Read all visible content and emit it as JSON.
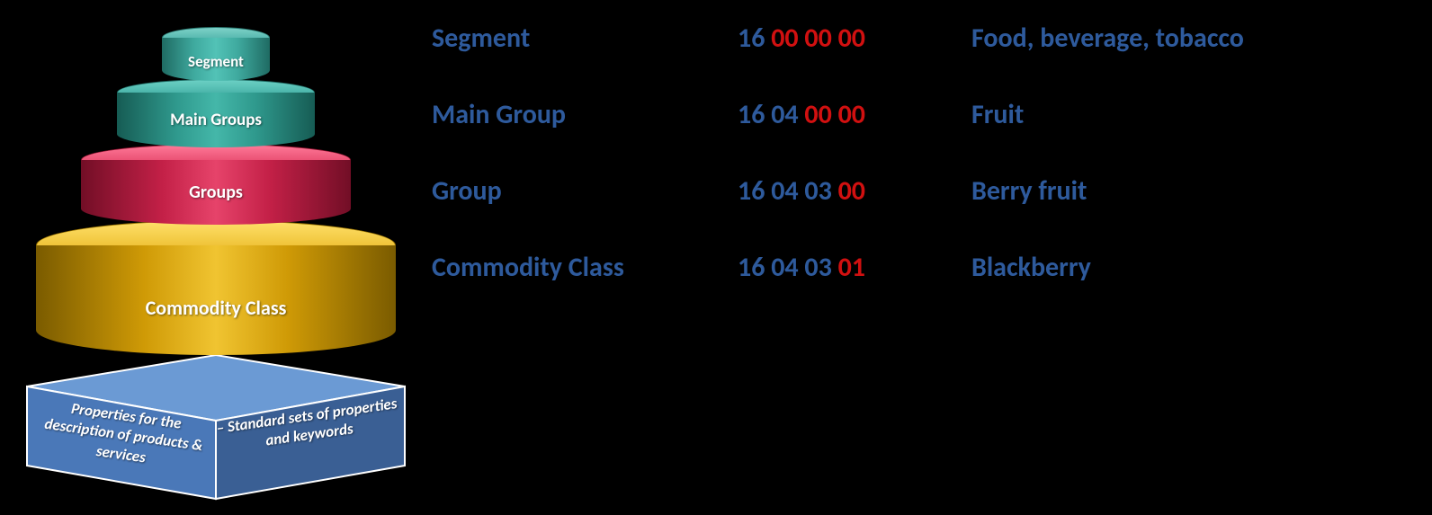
{
  "diagram": {
    "layers": [
      {
        "label": "Segment",
        "color_top": "#52c2b6",
        "color_side": "#2f998d"
      },
      {
        "label": "Main Groups",
        "color_top": "#44b7a9",
        "color_side": "#268a7f"
      },
      {
        "label": "Groups",
        "color_top": "#e6436a",
        "color_side": "#a81a3d"
      },
      {
        "label": "Commodity Class",
        "color_top": "#f0c431",
        "color_side": "#b88907"
      }
    ],
    "base": {
      "fill_left": "#4a78b8",
      "fill_right": "#3a5f94",
      "fill_top": "#6b9ad4",
      "border": "#ffffff",
      "label_left": "Properties for the description of products & services",
      "label_right": "– Standard sets of properties and keywords"
    }
  },
  "table": {
    "label_color": "#2e5a9c",
    "code_blue": "#2e5a9c",
    "code_red": "#d11010",
    "desc_color": "#2e5a9c",
    "rows": [
      {
        "label": "Segment",
        "code_parts": [
          {
            "text": "16 ",
            "color": "blue"
          },
          {
            "text": "00 00 00",
            "color": "red"
          }
        ],
        "desc": "Food, beverage, tobacco"
      },
      {
        "label": "Main Group",
        "code_parts": [
          {
            "text": "16 04 ",
            "color": "blue"
          },
          {
            "text": "00 00",
            "color": "red"
          }
        ],
        "desc": "Fruit"
      },
      {
        "label": "Group",
        "code_parts": [
          {
            "text": "16 04 03 ",
            "color": "blue"
          },
          {
            "text": "00",
            "color": "red"
          }
        ],
        "desc": "Berry fruit"
      },
      {
        "label": "Commodity Class",
        "code_parts": [
          {
            "text": "16 04 03 ",
            "color": "blue"
          },
          {
            "text": "01",
            "color": "red"
          }
        ],
        "desc": "Blackberry"
      }
    ]
  }
}
